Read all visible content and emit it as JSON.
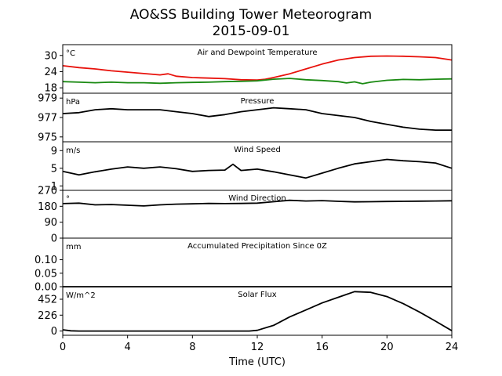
{
  "title": "AO&SS Building Tower Meteorogram",
  "subtitle": "2015-09-01",
  "chart_data": {
    "type": "line",
    "xlabel": "Time (UTC)",
    "xlim": [
      0,
      24
    ],
    "xticks": [
      "0",
      "4",
      "8",
      "12",
      "16",
      "20",
      "24"
    ],
    "panels": [
      {
        "title": "Air and Dewpoint Temperature",
        "unit": "°C",
        "ylim": [
          16,
          34
        ],
        "yticks": [
          "18",
          "24",
          "30"
        ],
        "series": [
          {
            "color": "#e8120c",
            "points": [
              [
                0,
                26.2
              ],
              [
                1,
                25.5
              ],
              [
                2,
                25
              ],
              [
                3,
                24.3
              ],
              [
                4,
                23.8
              ],
              [
                5,
                23.3
              ],
              [
                6,
                22.8
              ],
              [
                6.5,
                23.2
              ],
              [
                7,
                22.3
              ],
              [
                8,
                21.8
              ],
              [
                9,
                21.6
              ],
              [
                10,
                21.4
              ],
              [
                11,
                21
              ],
              [
                12,
                20.9
              ],
              [
                12.5,
                21.2
              ],
              [
                13,
                21.8
              ],
              [
                14,
                23.2
              ],
              [
                15,
                25
              ],
              [
                16,
                26.8
              ],
              [
                17,
                28.3
              ],
              [
                18,
                29.2
              ],
              [
                19,
                29.7
              ],
              [
                20,
                29.8
              ],
              [
                21,
                29.7
              ],
              [
                22,
                29.5
              ],
              [
                23,
                29.2
              ],
              [
                24,
                28.3
              ]
            ]
          },
          {
            "color": "#1a8a12",
            "points": [
              [
                0,
                20.3
              ],
              [
                1,
                20.1
              ],
              [
                2,
                19.9
              ],
              [
                3,
                20.1
              ],
              [
                4,
                19.9
              ],
              [
                5,
                19.9
              ],
              [
                6,
                19.7
              ],
              [
                7,
                19.9
              ],
              [
                8,
                20
              ],
              [
                9,
                20.1
              ],
              [
                10,
                20.3
              ],
              [
                11,
                20.4
              ],
              [
                12,
                20.6
              ],
              [
                13,
                21.2
              ],
              [
                14,
                21.5
              ],
              [
                15,
                21
              ],
              [
                16,
                20.7
              ],
              [
                17,
                20.3
              ],
              [
                17.5,
                19.8
              ],
              [
                18,
                20.2
              ],
              [
                18.5,
                19.5
              ],
              [
                19,
                20.1
              ],
              [
                20,
                20.8
              ],
              [
                21,
                21.1
              ],
              [
                22,
                21
              ],
              [
                23,
                21.2
              ],
              [
                24,
                21.3
              ]
            ]
          }
        ]
      },
      {
        "title": "Pressure",
        "unit": "hPa",
        "ylim": [
          974.5,
          979.5
        ],
        "yticks": [
          "975",
          "977",
          "979"
        ],
        "series": [
          {
            "color": "#000000",
            "points": [
              [
                0,
                977.4
              ],
              [
                1,
                977.5
              ],
              [
                2,
                977.8
              ],
              [
                3,
                977.9
              ],
              [
                4,
                977.8
              ],
              [
                5,
                977.8
              ],
              [
                6,
                977.8
              ],
              [
                7,
                977.6
              ],
              [
                8,
                977.4
              ],
              [
                9,
                977.1
              ],
              [
                10,
                977.3
              ],
              [
                11,
                977.6
              ],
              [
                12,
                977.8
              ],
              [
                13,
                978
              ],
              [
                14,
                977.9
              ],
              [
                15,
                977.8
              ],
              [
                16,
                977.4
              ],
              [
                17,
                977.2
              ],
              [
                18,
                977
              ],
              [
                19,
                976.6
              ],
              [
                20,
                976.3
              ],
              [
                21,
                976
              ],
              [
                22,
                975.8
              ],
              [
                23,
                975.7
              ],
              [
                24,
                975.7
              ]
            ]
          }
        ]
      },
      {
        "title": "Wind Speed",
        "unit": "m/s",
        "ylim": [
          0,
          11
        ],
        "yticks": [
          "1",
          "5",
          "9"
        ],
        "series": [
          {
            "color": "#000000",
            "points": [
              [
                0,
                4.3
              ],
              [
                1,
                3.5
              ],
              [
                2,
                4.2
              ],
              [
                3,
                4.8
              ],
              [
                4,
                5.3
              ],
              [
                5,
                5
              ],
              [
                6,
                5.3
              ],
              [
                7,
                4.9
              ],
              [
                8,
                4.3
              ],
              [
                9,
                4.5
              ],
              [
                10,
                4.6
              ],
              [
                10.5,
                5.9
              ],
              [
                11,
                4.5
              ],
              [
                12,
                4.8
              ],
              [
                13,
                4.2
              ],
              [
                14,
                3.5
              ],
              [
                15,
                2.8
              ],
              [
                16,
                3.9
              ],
              [
                17,
                5
              ],
              [
                18,
                6
              ],
              [
                19,
                6.5
              ],
              [
                20,
                7
              ],
              [
                21,
                6.7
              ],
              [
                22,
                6.5
              ],
              [
                23,
                6.2
              ],
              [
                24,
                5
              ]
            ]
          }
        ]
      },
      {
        "title": "Wind Direction",
        "unit": "°",
        "ylim": [
          0,
          270
        ],
        "yticks": [
          "0",
          "90",
          "180",
          "270"
        ],
        "series": [
          {
            "color": "#000000",
            "points": [
              [
                0,
                195
              ],
              [
                1,
                198
              ],
              [
                2,
                188
              ],
              [
                3,
                190
              ],
              [
                4,
                186
              ],
              [
                5,
                182
              ],
              [
                6,
                188
              ],
              [
                7,
                192
              ],
              [
                8,
                194
              ],
              [
                9,
                196
              ],
              [
                10,
                195
              ],
              [
                11,
                196
              ],
              [
                12,
                198
              ],
              [
                13,
                206
              ],
              [
                14,
                214
              ],
              [
                15,
                210
              ],
              [
                16,
                212
              ],
              [
                17,
                208
              ],
              [
                18,
                205
              ],
              [
                19,
                206
              ],
              [
                20,
                207
              ],
              [
                21,
                208
              ],
              [
                22,
                209
              ],
              [
                23,
                210
              ],
              [
                24,
                211
              ]
            ]
          }
        ]
      },
      {
        "title": "Accumulated Precipitation Since 0Z",
        "unit": "mm",
        "ylim": [
          0,
          0.18
        ],
        "yticks": [
          "0.00",
          "0.05",
          "0.10"
        ],
        "series": [
          {
            "color": "#000000",
            "points": [
              [
                0,
                0
              ],
              [
                24,
                0
              ]
            ]
          }
        ]
      },
      {
        "title": "Solar Flux",
        "unit": "W/m^2",
        "ylim": [
          -60,
          630
        ],
        "yticks": [
          "0",
          "226",
          "452"
        ],
        "series": [
          {
            "color": "#000000",
            "points": [
              [
                0,
                18
              ],
              [
                0.5,
                3
              ],
              [
                1,
                0
              ],
              [
                11.5,
                0
              ],
              [
                12,
                10
              ],
              [
                13,
                80
              ],
              [
                14,
                200
              ],
              [
                15,
                300
              ],
              [
                16,
                400
              ],
              [
                17,
                480
              ],
              [
                17.5,
                520
              ],
              [
                18,
                560
              ],
              [
                19,
                550
              ],
              [
                20,
                490
              ],
              [
                21,
                390
              ],
              [
                22,
                270
              ],
              [
                23,
                140
              ],
              [
                24,
                5
              ]
            ]
          }
        ]
      }
    ]
  }
}
